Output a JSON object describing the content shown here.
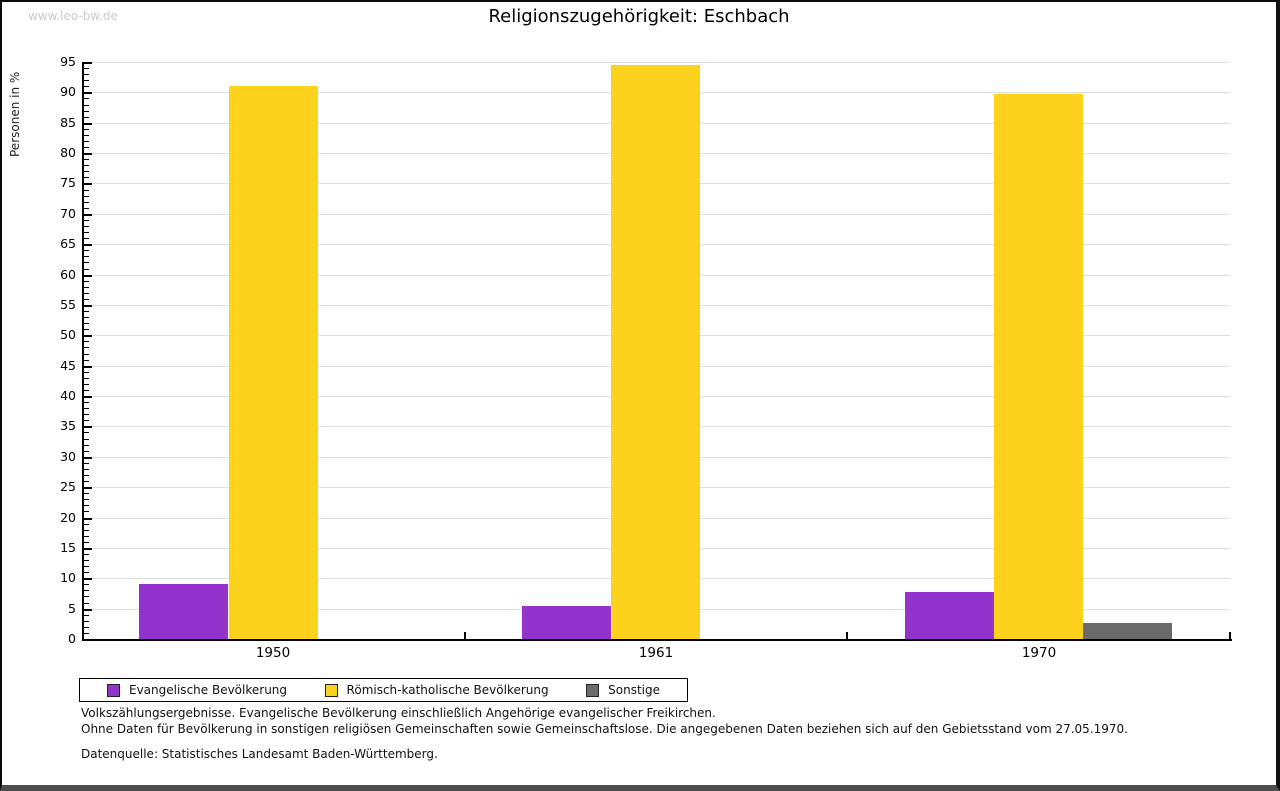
{
  "watermark": "www.leo-bw.de",
  "title": "Religionszugehörigkeit: Eschbach",
  "chart_data": {
    "type": "bar",
    "title": "Religionszugehörigkeit: Eschbach",
    "xlabel": "",
    "ylabel": "Personen in %",
    "ylim": [
      0,
      95
    ],
    "ytick_step": 5,
    "minor_tick_step": 1,
    "grid": true,
    "legend_position": "bottom",
    "categories": [
      "1950",
      "1961",
      "1970"
    ],
    "series": [
      {
        "name": "Evangelische Bevölkerung",
        "color": "#9333CC",
        "values": [
          9.0,
          5.5,
          7.7
        ]
      },
      {
        "name": "Römisch-katholische Bevölkerung",
        "color": "#FCD21C",
        "values": [
          91.0,
          94.5,
          89.7
        ]
      },
      {
        "name": "Sonstige",
        "color": "#6B6B6B",
        "values": [
          0,
          0,
          2.6
        ]
      }
    ],
    "colors": {
      "grid": "#dedede",
      "axis": "#000000"
    }
  },
  "footnotes": {
    "line1": "Volkszählungsergebnisse. Evangelische Bevölkerung einschließlich Angehörige evangelischer Freikirchen.",
    "line2": "Ohne Daten für Bevölkerung in sonstigen religiösen Gemeinschaften sowie Gemeinschaftslose. Die angegebenen Daten beziehen sich auf den Gebietsstand vom 27.05.1970.",
    "source": "Datenquelle: Statistisches Landesamt Baden-Württemberg."
  }
}
